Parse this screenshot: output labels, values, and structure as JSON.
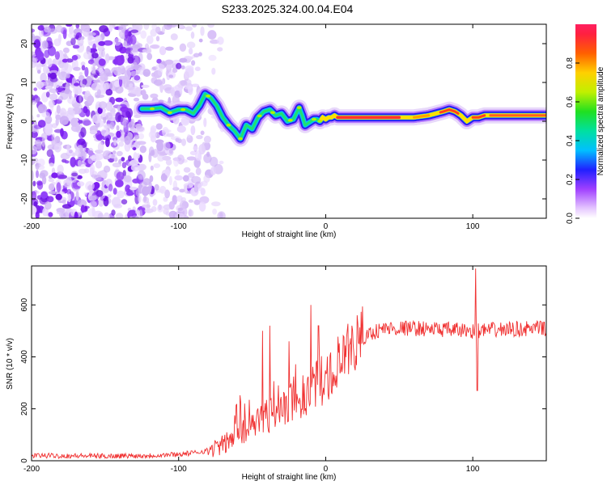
{
  "chart_data": {
    "title": "S233.2025.324.00.04.E04",
    "panels": [
      {
        "type": "heatmap",
        "xlabel": "Height of straight line (km)",
        "ylabel": "Frequency (Hz)",
        "xlim": [
          -200,
          150
        ],
        "ylim": [
          -25,
          25
        ],
        "xticks": [
          -200,
          -100,
          0,
          100
        ],
        "yticks": [
          -20,
          -10,
          0,
          10,
          20
        ],
        "ridge": {
          "x": [
            -125,
            -118,
            -112,
            -106,
            -100,
            -95,
            -90,
            -86,
            -82,
            -78,
            -74,
            -70,
            -66,
            -62,
            -58,
            -54,
            -50,
            -46,
            -42,
            -38,
            -34,
            -30,
            -26,
            -22,
            -18,
            -16,
            -14,
            -12,
            -10,
            -8,
            -6,
            -4,
            -2,
            0,
            2,
            4,
            6,
            8,
            20,
            40,
            60,
            70,
            80,
            84,
            88,
            92,
            96,
            100,
            104,
            108,
            120,
            140,
            150
          ],
          "y": [
            3.2,
            3.2,
            3.5,
            2.2,
            3.0,
            3.0,
            2.0,
            4.0,
            7.0,
            6.0,
            4.0,
            1.0,
            -1.0,
            -2.5,
            -4.5,
            -1.0,
            -2.0,
            1.0,
            2.5,
            3.0,
            1.5,
            2.0,
            0.0,
            0.5,
            3.5,
            1.5,
            -1.0,
            -0.5,
            0.0,
            0.5,
            0.5,
            0.0,
            1.0,
            0.5,
            1.0,
            1.0,
            1.5,
            1.0,
            1.0,
            1.0,
            1.0,
            1.5,
            2.5,
            3.0,
            2.5,
            1.5,
            0.0,
            1.0,
            1.0,
            1.5,
            1.5,
            1.5,
            1.5
          ]
        },
        "colorbar": {
          "label": "Normalized spectral amplitude",
          "min": 0,
          "max": 1,
          "ticks": [
            "0.0",
            "0.2",
            "0.4",
            "0.6",
            "0.8"
          ]
        }
      },
      {
        "type": "line",
        "xlabel": "Height of straight line (km)",
        "ylabel": "SNR (10 * v/v)",
        "xlim": [
          -200,
          150
        ],
        "ylim": [
          0,
          750
        ],
        "xticks": [
          -200,
          -100,
          0,
          100
        ],
        "yticks": [
          0,
          200,
          400,
          600
        ],
        "color": "#f03030",
        "trend": {
          "x": [
            -200,
            -150,
            -120,
            -100,
            -90,
            -80,
            -70,
            -60,
            -50,
            -40,
            -30,
            -20,
            -10,
            0,
            10,
            20,
            30,
            40,
            60,
            80,
            100,
            120,
            150
          ],
          "y": [
            20,
            18,
            20,
            25,
            30,
            40,
            60,
            100,
            140,
            170,
            200,
            230,
            270,
            320,
            380,
            450,
            490,
            510,
            510,
            505,
            500,
            505,
            510
          ]
        },
        "spikes": [
          {
            "x": -55,
            "y": 220
          },
          {
            "x": -43,
            "y": 500
          },
          {
            "x": -38,
            "y": 520
          },
          {
            "x": -25,
            "y": 460
          },
          {
            "x": -10,
            "y": 600
          },
          {
            "x": -5,
            "y": 520
          },
          {
            "x": 102,
            "y": 740
          },
          {
            "x": 103,
            "y": 270
          }
        ]
      }
    ]
  }
}
